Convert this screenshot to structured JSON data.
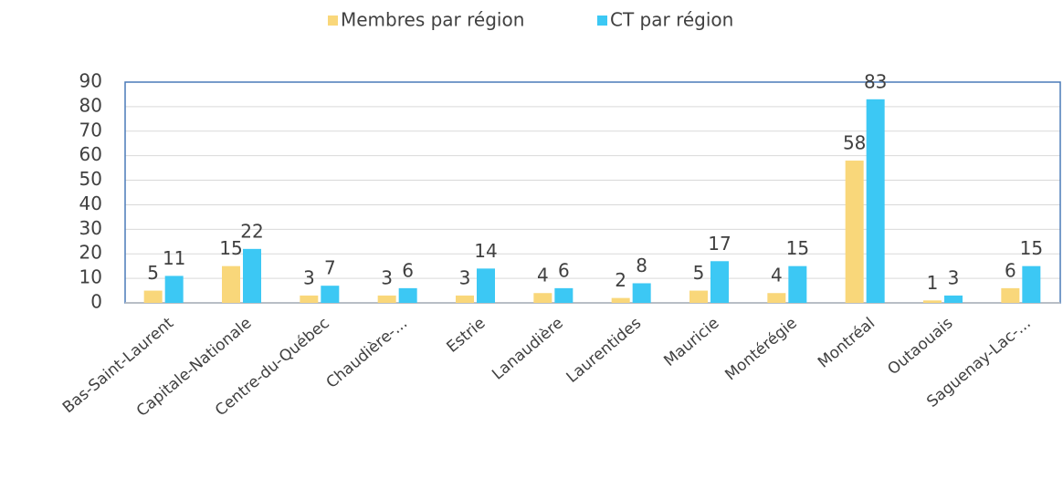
{
  "chart_data": {
    "type": "bar",
    "categories": [
      "Bas-Saint-Laurent",
      "Capitale-Nationale",
      "Centre-du-Québec",
      "Chaudière-...",
      "Estrie",
      "Lanaudière",
      "Laurentides",
      "Mauricie",
      "Montérégie",
      "Montréal",
      "Outaouais",
      "Saguenay-Lac-..."
    ],
    "series": [
      {
        "name": "Membres par région",
        "color": "#f9d77a",
        "values": [
          5,
          15,
          3,
          3,
          3,
          4,
          2,
          5,
          4,
          58,
          1,
          6
        ]
      },
      {
        "name": "CT par région",
        "color": "#3cc8f4",
        "values": [
          11,
          22,
          7,
          6,
          14,
          6,
          8,
          17,
          15,
          83,
          3,
          15
        ]
      }
    ],
    "ylim": [
      0,
      90
    ],
    "yticks": [
      0,
      10,
      20,
      30,
      40,
      50,
      60,
      70,
      80,
      90
    ],
    "grid": true,
    "legend": "top"
  }
}
